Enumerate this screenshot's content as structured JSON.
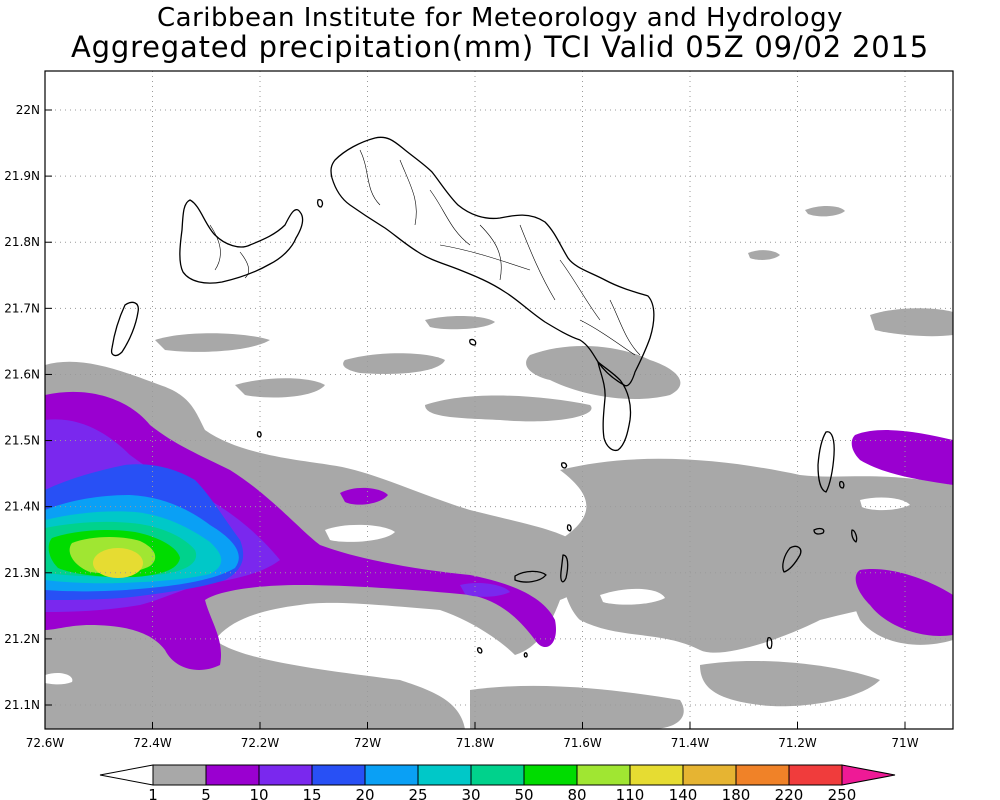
{
  "title": {
    "line1": "Caribbean Institute for Meteorology and Hydrology",
    "line2": "Aggregated precipitation(mm) TCI Valid 05Z 09/02 2015"
  },
  "map": {
    "region": "Turks and Caicos Islands",
    "lon_range": [
      -72.6,
      -70.9
    ],
    "lat_range": [
      21.07,
      22.07
    ],
    "gridlines": "dotted",
    "lon_ticks": [
      {
        "value": -72.6,
        "label": "72.6W"
      },
      {
        "value": -72.4,
        "label": "72.4W"
      },
      {
        "value": -72.2,
        "label": "72.2W"
      },
      {
        "value": -72.0,
        "label": "72W"
      },
      {
        "value": -71.8,
        "label": "71.8W"
      },
      {
        "value": -71.6,
        "label": "71.6W"
      },
      {
        "value": -71.4,
        "label": "71.4W"
      },
      {
        "value": -71.2,
        "label": "71.2W"
      },
      {
        "value": -71.0,
        "label": "71W"
      }
    ],
    "lat_ticks": [
      {
        "value": 22.0,
        "label": "22N"
      },
      {
        "value": 21.9,
        "label": "21.9N"
      },
      {
        "value": 21.8,
        "label": "21.8N"
      },
      {
        "value": 21.7,
        "label": "21.7N"
      },
      {
        "value": 21.6,
        "label": "21.6N"
      },
      {
        "value": 21.5,
        "label": "21.5N"
      },
      {
        "value": 21.4,
        "label": "21.4N"
      },
      {
        "value": 21.3,
        "label": "21.3N"
      },
      {
        "value": 21.2,
        "label": "21.2N"
      },
      {
        "value": 21.1,
        "label": "21.1N"
      }
    ]
  },
  "colorbar": {
    "below_color": "#ffffff",
    "labels": [
      "1",
      "5",
      "10",
      "15",
      "20",
      "25",
      "30",
      "50",
      "80",
      "110",
      "140",
      "180",
      "220",
      "250"
    ],
    "colors": [
      "#a8a8a8",
      "#9a00d0",
      "#7a28ee",
      "#2850f5",
      "#0aa0f5",
      "#00c8c8",
      "#00d28c",
      "#00dc00",
      "#a0e632",
      "#e6dc32",
      "#e6b432",
      "#f08228",
      "#f03c3c"
    ],
    "above_color": "#ee1a96"
  }
}
